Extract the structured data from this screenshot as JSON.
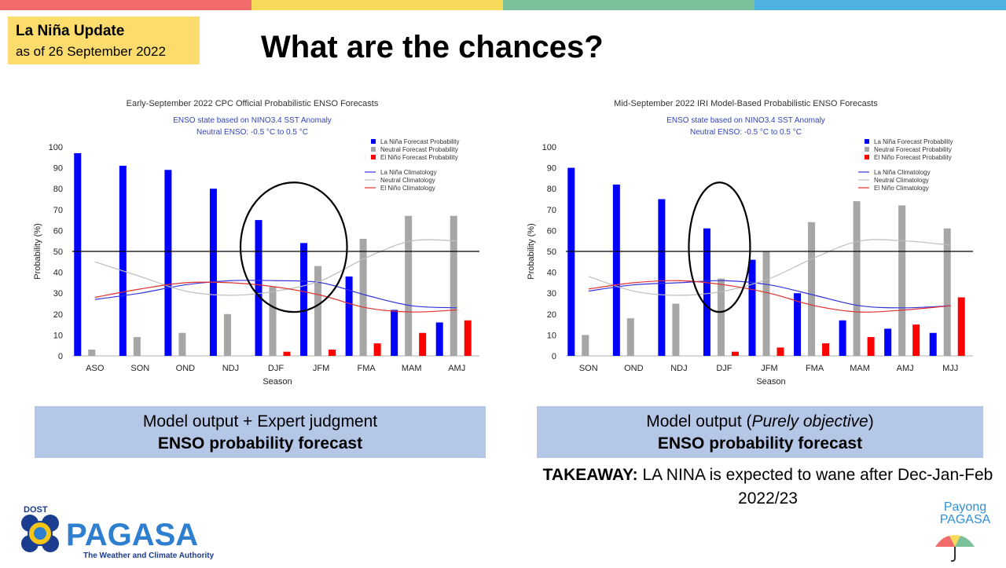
{
  "header": {
    "badge_title": "La Niña Update",
    "badge_date": "as of 26 September  2022",
    "headline": "What are the chances?"
  },
  "colors": {
    "bar_colors": [
      "#f26b6b",
      "#f8da5b",
      "#7ac19a",
      "#4fb0e2"
    ],
    "badge_bg": "#fcdc6c",
    "caption_bg": "#b4c7e7",
    "la_nina": "#0000ff",
    "neutral": "#a6a6a6",
    "el_nino": "#ff0000"
  },
  "chart_data": [
    {
      "type": "bar",
      "title": "Early-September 2022 CPC Official Probabilistic ENSO Forecasts",
      "subtitle1": "ENSO state based on NINO3.4 SST Anomaly",
      "subtitle2": "Neutral ENSO: -0.5 °C to 0.5 °C",
      "xlabel": "Season",
      "ylabel": "Probability (%)",
      "ylim": [
        0,
        100
      ],
      "yticks": [
        0,
        10,
        20,
        30,
        40,
        50,
        60,
        70,
        80,
        90,
        100
      ],
      "grid": false,
      "reference_line": 50,
      "legend_position": "top-right",
      "categories": [
        "ASO",
        "SON",
        "OND",
        "NDJ",
        "DJF",
        "JFM",
        "FMA",
        "MAM",
        "AMJ"
      ],
      "series": [
        {
          "name": "La Niña Forecast Probability",
          "color": "#0000ff",
          "values": [
            97,
            91,
            89,
            80,
            65,
            54,
            38,
            22,
            16
          ]
        },
        {
          "name": "Neutral Forecast Probability",
          "color": "#a6a6a6",
          "values": [
            3,
            9,
            11,
            20,
            33,
            43,
            56,
            67,
            67
          ]
        },
        {
          "name": "El Niño Forecast Probability",
          "color": "#ff0000",
          "values": [
            0,
            0,
            0,
            0,
            2,
            3,
            6,
            11,
            17
          ]
        }
      ],
      "climatology": [
        {
          "name": "La Niña Climatology",
          "color": "#3333dd",
          "values": [
            27,
            30,
            34,
            36,
            36,
            35,
            29,
            24,
            23
          ]
        },
        {
          "name": "Neutral Climatology",
          "color": "#bdbdbd",
          "values": [
            45,
            38,
            31,
            29,
            31,
            36,
            47,
            55,
            55
          ]
        },
        {
          "name": "El Niño Climatology",
          "color": "#e03030",
          "values": [
            28,
            32,
            35,
            35,
            33,
            29,
            23,
            21,
            22
          ]
        }
      ],
      "highlight_circle_categories": [
        "DJF",
        "JFM"
      ]
    },
    {
      "type": "bar",
      "title": "Mid-September 2022 IRI Model-Based Probabilistic ENSO Forecasts",
      "subtitle1": "ENSO state based on NINO3.4 SST Anomaly",
      "subtitle2": "Neutral ENSO: -0.5 °C to 0.5 °C",
      "xlabel": "Season",
      "ylabel": "Probability (%)",
      "ylim": [
        0,
        100
      ],
      "yticks": [
        0,
        10,
        20,
        30,
        40,
        50,
        60,
        70,
        80,
        90,
        100
      ],
      "grid": false,
      "reference_line": 50,
      "legend_position": "top-right",
      "categories": [
        "SON",
        "OND",
        "NDJ",
        "DJF",
        "JFM",
        "FMA",
        "MAM",
        "AMJ",
        "MJJ"
      ],
      "series": [
        {
          "name": "La Niña Forecast Probability",
          "color": "#0000ff",
          "values": [
            90,
            82,
            75,
            61,
            46,
            30,
            17,
            13,
            11
          ]
        },
        {
          "name": "Neutral Forecast Probability",
          "color": "#a6a6a6",
          "values": [
            10,
            18,
            25,
            37,
            50,
            64,
            74,
            72,
            61
          ]
        },
        {
          "name": "El Niño Forecast Probability",
          "color": "#ff0000",
          "values": [
            0,
            0,
            0,
            2,
            4,
            6,
            9,
            15,
            28
          ]
        }
      ],
      "climatology": [
        {
          "name": "La Niña Climatology",
          "color": "#3333dd",
          "values": [
            31,
            34,
            35,
            36,
            34,
            29,
            24,
            23,
            24
          ]
        },
        {
          "name": "Neutral Climatology",
          "color": "#bdbdbd",
          "values": [
            38,
            31,
            29,
            31,
            37,
            47,
            55,
            55,
            53
          ]
        },
        {
          "name": "El Niño Climatology",
          "color": "#e03030",
          "values": [
            32,
            35,
            36,
            34,
            30,
            24,
            21,
            22,
            24
          ]
        }
      ],
      "highlight_circle_categories": [
        "DJF"
      ]
    }
  ],
  "captions": {
    "left_line1": "Model output + Expert judgment",
    "left_line2": "ENSO probability forecast",
    "right_line1_pre": "Model output (",
    "right_line1_italic": "Purely objective",
    "right_line1_post": ")",
    "right_line2": "ENSO probability forecast"
  },
  "takeaway": {
    "label": "TAKEAWAY:",
    "text": " LA NINA is expected to wane after Dec-Jan-Feb 2022/23"
  },
  "logos": {
    "dost": "DOST",
    "pagasa": "PAGASA",
    "pagasa_tagline": "The Weather and Climate Authority",
    "payong_line1": "Payong",
    "payong_line2": "PAGASA"
  }
}
